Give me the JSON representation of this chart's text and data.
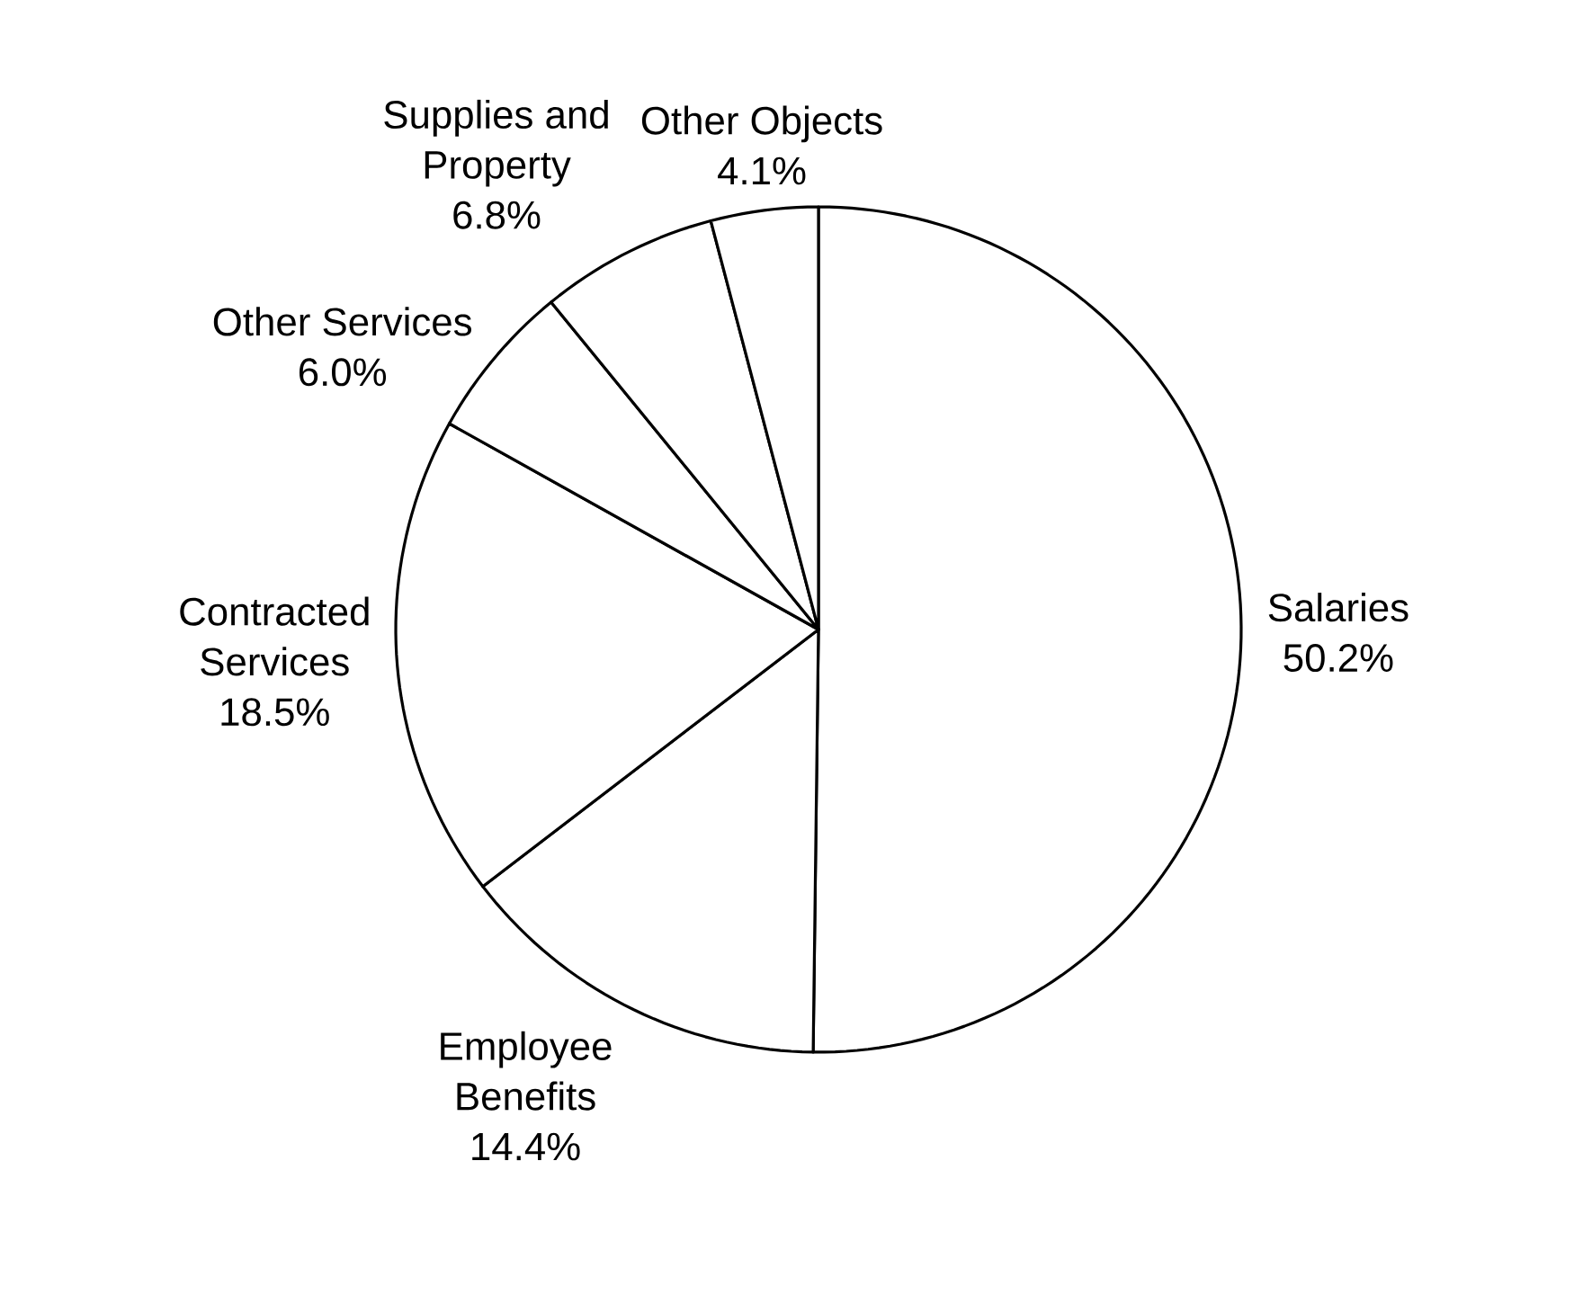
{
  "chart_data": {
    "type": "pie",
    "categories": [
      "Salaries",
      "Employee Benefits",
      "Contracted Services",
      "Other Services",
      "Supplies and Property",
      "Other Objects"
    ],
    "values": [
      50.2,
      14.4,
      18.5,
      6.0,
      6.8,
      4.1
    ],
    "colors": [
      "#ffffff",
      "#ffffff",
      "#ffffff",
      "#ffffff",
      "#ffffff",
      "#ffffff"
    ],
    "value_labels": [
      "50.2%",
      "14.4%",
      "18.5%",
      "6.0%",
      "6.8%",
      "4.1%"
    ]
  }
}
